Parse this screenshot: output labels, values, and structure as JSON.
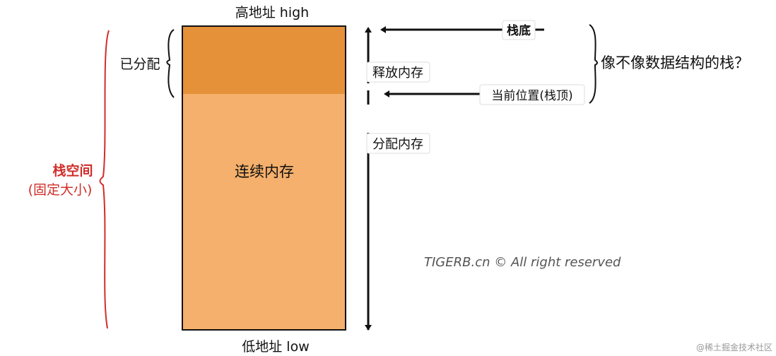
{
  "labels": {
    "high_address": "高地址 high",
    "low_address": "低地址 low",
    "allocated": "已分配",
    "stack_space_line1": "栈空间",
    "stack_space_line2": "(固定大小)",
    "contiguous_memory": "连续内存",
    "release_memory": "释放内存",
    "allocate_memory": "分配内存",
    "stack_bottom": "栈底",
    "current_position": "当前位置(栈顶)",
    "question": "像不像数据结构的栈？",
    "watermark": "TIGERB.cn © All right reserved",
    "source": "@稀土掘金技术社区"
  },
  "colors": {
    "allocated_fill": "#e5913a",
    "free_fill": "#f4b06c",
    "stack_space_color": "#d12e2a",
    "watermark_color": "#555555"
  }
}
